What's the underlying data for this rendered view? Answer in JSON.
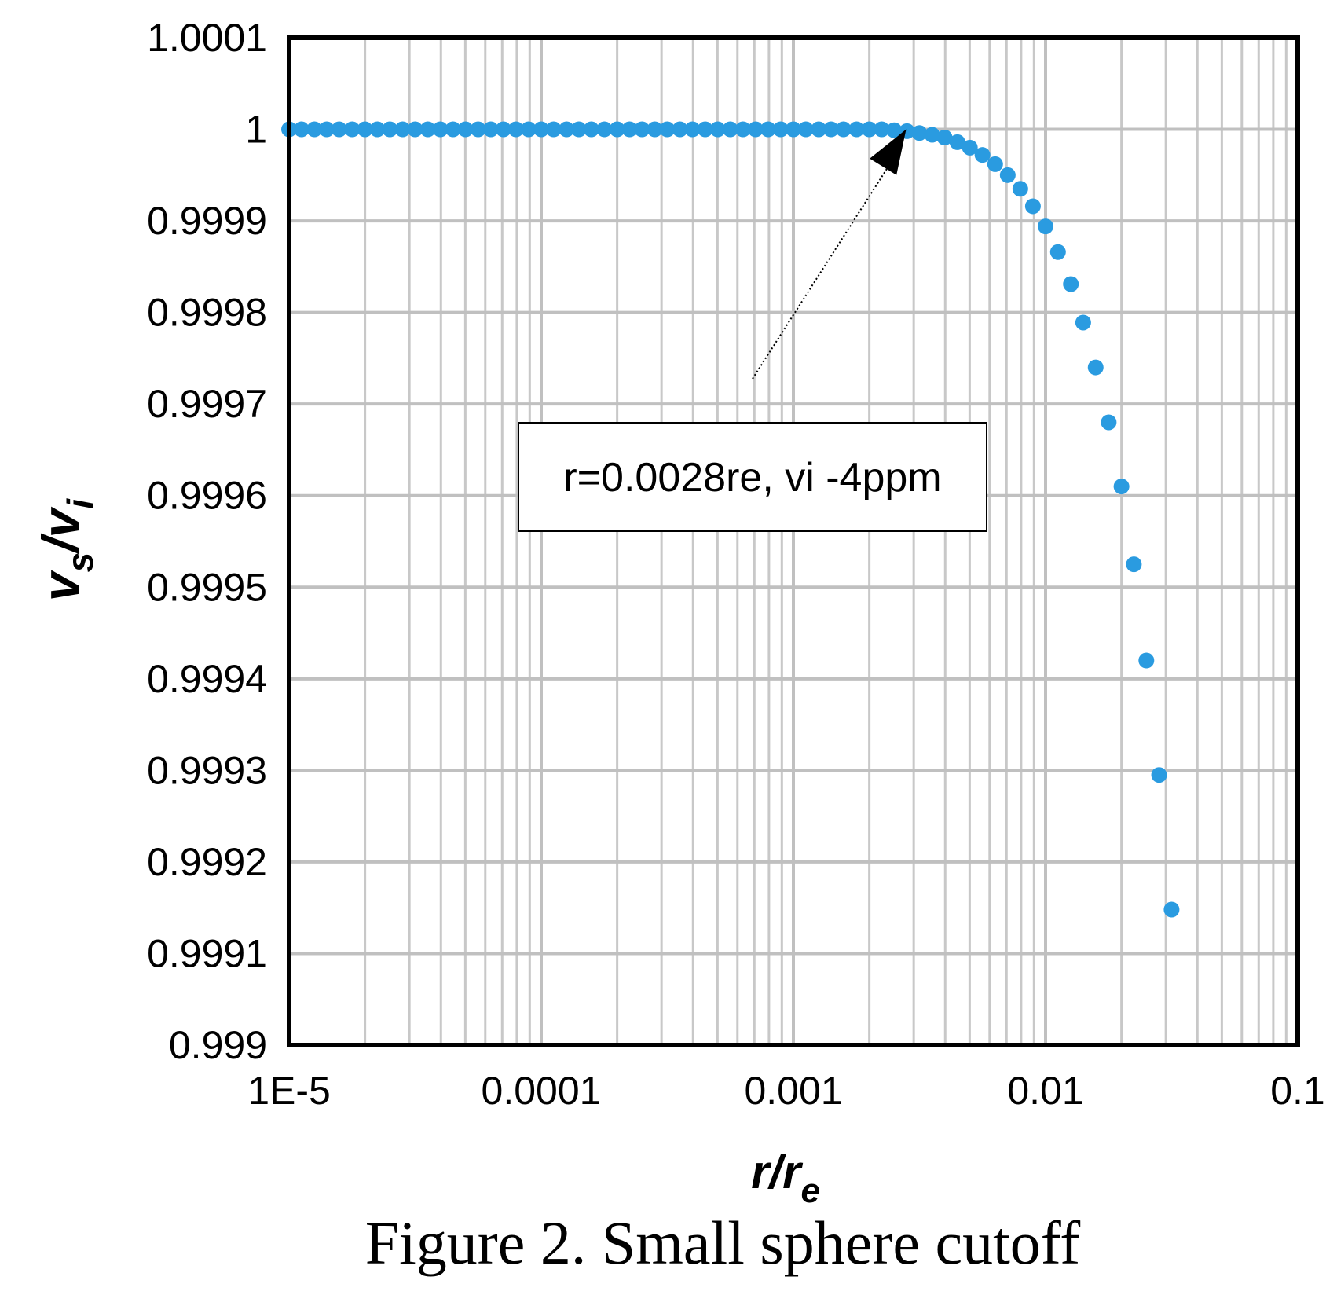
{
  "chart_data": {
    "type": "scatter",
    "xscale": "log",
    "xlim": [
      1e-05,
      0.1
    ],
    "ylim": [
      0.999,
      1.0001
    ],
    "xlabel_main": "r/r",
    "xlabel_sub": "e",
    "ylabel_main1": "v",
    "ylabel_sub1": "s",
    "ylabel_slash": "/",
    "ylabel_main2": "v",
    "ylabel_sub2": "i",
    "x_ticks": [
      1e-05,
      0.0001,
      0.001,
      0.01,
      0.1
    ],
    "x_tick_labels": [
      "1E-5",
      "0.0001",
      "0.001",
      "0.01",
      "0.1"
    ],
    "y_ticks": [
      0.999,
      0.9991,
      0.9992,
      0.9993,
      0.9994,
      0.9995,
      0.9996,
      0.9997,
      0.9998,
      0.9999,
      1,
      1.0001
    ],
    "y_tick_labels": [
      "0.999",
      "0.9991",
      "0.9992",
      "0.9993",
      "0.9994",
      "0.9995",
      "0.9996",
      "0.9997",
      "0.9998",
      "0.9999",
      "1",
      "1.0001"
    ],
    "grid": true,
    "marker_color": "#2a9be0",
    "series": [
      {
        "points": [
          {
            "x": 1e-05,
            "y": 1
          },
          {
            "x": 1.12e-05,
            "y": 1
          },
          {
            "x": 1.26e-05,
            "y": 1
          },
          {
            "x": 1.41e-05,
            "y": 1
          },
          {
            "x": 1.58e-05,
            "y": 1
          },
          {
            "x": 1.78e-05,
            "y": 1
          },
          {
            "x": 2e-05,
            "y": 1
          },
          {
            "x": 2.24e-05,
            "y": 1
          },
          {
            "x": 2.51e-05,
            "y": 1
          },
          {
            "x": 2.82e-05,
            "y": 1
          },
          {
            "x": 3.16e-05,
            "y": 1
          },
          {
            "x": 3.55e-05,
            "y": 1
          },
          {
            "x": 3.98e-05,
            "y": 1
          },
          {
            "x": 4.47e-05,
            "y": 1
          },
          {
            "x": 5.01e-05,
            "y": 1
          },
          {
            "x": 5.62e-05,
            "y": 1
          },
          {
            "x": 6.31e-05,
            "y": 1
          },
          {
            "x": 7.08e-05,
            "y": 1
          },
          {
            "x": 7.94e-05,
            "y": 1
          },
          {
            "x": 8.91e-05,
            "y": 1
          },
          {
            "x": 0.0001,
            "y": 1
          },
          {
            "x": 0.000112,
            "y": 1
          },
          {
            "x": 0.000126,
            "y": 1
          },
          {
            "x": 0.000141,
            "y": 1
          },
          {
            "x": 0.000158,
            "y": 1
          },
          {
            "x": 0.000178,
            "y": 1
          },
          {
            "x": 0.0002,
            "y": 1
          },
          {
            "x": 0.000224,
            "y": 1
          },
          {
            "x": 0.000251,
            "y": 1
          },
          {
            "x": 0.000282,
            "y": 1
          },
          {
            "x": 0.000316,
            "y": 1
          },
          {
            "x": 0.000355,
            "y": 1
          },
          {
            "x": 0.000398,
            "y": 1
          },
          {
            "x": 0.000447,
            "y": 1
          },
          {
            "x": 0.000501,
            "y": 1
          },
          {
            "x": 0.000562,
            "y": 1
          },
          {
            "x": 0.000631,
            "y": 1
          },
          {
            "x": 0.000708,
            "y": 1
          },
          {
            "x": 0.000794,
            "y": 1
          },
          {
            "x": 0.000891,
            "y": 1
          },
          {
            "x": 0.001,
            "y": 1
          },
          {
            "x": 0.00112,
            "y": 1
          },
          {
            "x": 0.00126,
            "y": 1
          },
          {
            "x": 0.00141,
            "y": 1
          },
          {
            "x": 0.00158,
            "y": 1
          },
          {
            "x": 0.00178,
            "y": 1
          },
          {
            "x": 0.002,
            "y": 1
          },
          {
            "x": 0.00224,
            "y": 1
          },
          {
            "x": 0.00251,
            "y": 0.999999
          },
          {
            "x": 0.00282,
            "y": 0.999998
          },
          {
            "x": 0.00316,
            "y": 0.999996
          },
          {
            "x": 0.00355,
            "y": 0.999994
          },
          {
            "x": 0.00398,
            "y": 0.999991
          },
          {
            "x": 0.00447,
            "y": 0.999986
          },
          {
            "x": 0.00501,
            "y": 0.99998
          },
          {
            "x": 0.00562,
            "y": 0.999972
          },
          {
            "x": 0.00631,
            "y": 0.999962
          },
          {
            "x": 0.00708,
            "y": 0.99995
          },
          {
            "x": 0.00794,
            "y": 0.999935
          },
          {
            "x": 0.00891,
            "y": 0.999916
          },
          {
            "x": 0.01,
            "y": 0.999894
          },
          {
            "x": 0.0112,
            "y": 0.999866
          },
          {
            "x": 0.0126,
            "y": 0.999831
          },
          {
            "x": 0.0141,
            "y": 0.999789
          },
          {
            "x": 0.0158,
            "y": 0.99974
          },
          {
            "x": 0.0178,
            "y": 0.99968
          },
          {
            "x": 0.02,
            "y": 0.99961
          },
          {
            "x": 0.0224,
            "y": 0.999525
          },
          {
            "x": 0.0251,
            "y": 0.99942
          },
          {
            "x": 0.0282,
            "y": 0.999295
          },
          {
            "x": 0.0316,
            "y": 0.999148
          }
        ]
      }
    ],
    "annotation": {
      "text": "r=0.0028re, vi -4ppm",
      "arrow_target": {
        "x": 0.0028,
        "y": 1
      }
    }
  },
  "caption": "Figure 2.  Small sphere cutoff"
}
